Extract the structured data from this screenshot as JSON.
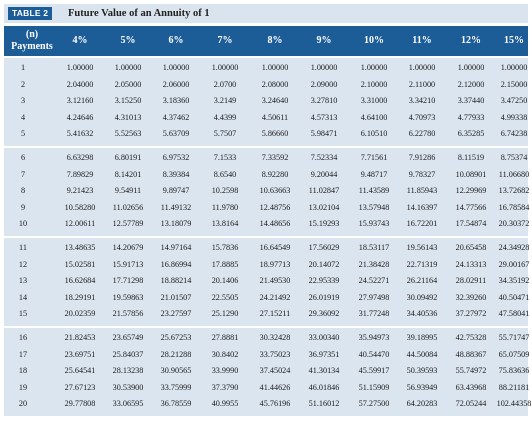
{
  "title": {
    "label": "TABLE 2",
    "text": "Future Value of an Annuity of 1"
  },
  "header": {
    "n_top": "(n)",
    "n_bottom": "Payments",
    "rates": [
      "4%",
      "5%",
      "6%",
      "7%",
      "8%",
      "9%",
      "10%",
      "11%",
      "12%",
      "15%"
    ]
  },
  "colors": {
    "header_bg": "#1c5d98",
    "title_bar_bg": "#d9e4ef",
    "group_bg": "#dbe5f0"
  },
  "groups": [
    [
      {
        "n": "1",
        "values": [
          "1.00000",
          "1.00000",
          "1.00000",
          "1.00000",
          "1.00000",
          "1.00000",
          "1.00000",
          "1.00000",
          "1.00000",
          "1.00000"
        ]
      },
      {
        "n": "2",
        "values": [
          "2.04000",
          "2.05000",
          "2.06000",
          "2.0700",
          "2.08000",
          "2.09000",
          "2.10000",
          "2.11000",
          "2.12000",
          "2.15000"
        ]
      },
      {
        "n": "3",
        "values": [
          "3.12160",
          "3.15250",
          "3.18360",
          "3.2149",
          "3.24640",
          "3.27810",
          "3.31000",
          "3.34210",
          "3.37440",
          "3.47250"
        ]
      },
      {
        "n": "4",
        "values": [
          "4.24646",
          "4.31013",
          "4.37462",
          "4.4399",
          "4.50611",
          "4.57313",
          "4.64100",
          "4.70973",
          "4.77933",
          "4.99338"
        ]
      },
      {
        "n": "5",
        "values": [
          "5.41632",
          "5.52563",
          "5.63709",
          "5.7507",
          "5.86660",
          "5.98471",
          "6.10510",
          "6.22780",
          "6.35285",
          "6.74238"
        ]
      }
    ],
    [
      {
        "n": "6",
        "values": [
          "6.63298",
          "6.80191",
          "6.97532",
          "7.1533",
          "7.33592",
          "7.52334",
          "7.71561",
          "7.91286",
          "8.11519",
          "8.75374"
        ]
      },
      {
        "n": "7",
        "values": [
          "7.89829",
          "8.14201",
          "8.39384",
          "8.6540",
          "8.92280",
          "9.20044",
          "9.48717",
          "9.78327",
          "10.08901",
          "11.06680"
        ]
      },
      {
        "n": "8",
        "values": [
          "9.21423",
          "9.54911",
          "9.89747",
          "10.2598",
          "10.63663",
          "11.02847",
          "11.43589",
          "11.85943",
          "12.29969",
          "13.72682"
        ]
      },
      {
        "n": "9",
        "values": [
          "10.58280",
          "11.02656",
          "11.49132",
          "11.9780",
          "12.48756",
          "13.02104",
          "13.57948",
          "14.16397",
          "14.77566",
          "16.78584"
        ]
      },
      {
        "n": "10",
        "values": [
          "12.00611",
          "12.57789",
          "13.18079",
          "13.8164",
          "14.48656",
          "15.19293",
          "15.93743",
          "16.72201",
          "17.54874",
          "20.30372"
        ]
      }
    ],
    [
      {
        "n": "11",
        "values": [
          "13.48635",
          "14.20679",
          "14.97164",
          "15.7836",
          "16.64549",
          "17.56029",
          "18.53117",
          "19.56143",
          "20.65458",
          "24.34928"
        ]
      },
      {
        "n": "12",
        "values": [
          "15.02581",
          "15.91713",
          "16.86994",
          "17.8885",
          "18.97713",
          "20.14072",
          "21.38428",
          "22.71319",
          "24.13313",
          "29.00167"
        ]
      },
      {
        "n": "13",
        "values": [
          "16.62684",
          "17.71298",
          "18.88214",
          "20.1406",
          "21.49530",
          "22.95339",
          "24.52271",
          "26.21164",
          "28.02911",
          "34.35192"
        ]
      },
      {
        "n": "14",
        "values": [
          "18.29191",
          "19.59863",
          "21.01507",
          "22.5505",
          "24.21492",
          "26.01919",
          "27.97498",
          "30.09492",
          "32.39260",
          "40.50471"
        ]
      },
      {
        "n": "15",
        "values": [
          "20.02359",
          "21.57856",
          "23.27597",
          "25.1290",
          "27.15211",
          "29.36092",
          "31.77248",
          "34.40536",
          "37.27972",
          "47.58041"
        ]
      }
    ],
    [
      {
        "n": "16",
        "values": [
          "21.82453",
          "23.65749",
          "25.67253",
          "27.8881",
          "30.32428",
          "33.00340",
          "35.94973",
          "39.18995",
          "42.75328",
          "55.71747"
        ]
      },
      {
        "n": "17",
        "values": [
          "23.69751",
          "25.84037",
          "28.21288",
          "30.8402",
          "33.75023",
          "36.97351",
          "40.54470",
          "44.50084",
          "48.88367",
          "65.07509"
        ]
      },
      {
        "n": "18",
        "values": [
          "25.64541",
          "28.13238",
          "30.90565",
          "33.9990",
          "37.45024",
          "41.30134",
          "45.59917",
          "50.39593",
          "55.74972",
          "75.83636"
        ]
      },
      {
        "n": "19",
        "values": [
          "27.67123",
          "30.53900",
          "33.75999",
          "37.3790",
          "41.44626",
          "46.01846",
          "51.15909",
          "56.93949",
          "63.43968",
          "88.21181"
        ]
      },
      {
        "n": "20",
        "values": [
          "29.77808",
          "33.06595",
          "36.78559",
          "40.9955",
          "45.76196",
          "51.16012",
          "57.27500",
          "64.20283",
          "72.05244",
          "102.44358"
        ]
      }
    ]
  ]
}
